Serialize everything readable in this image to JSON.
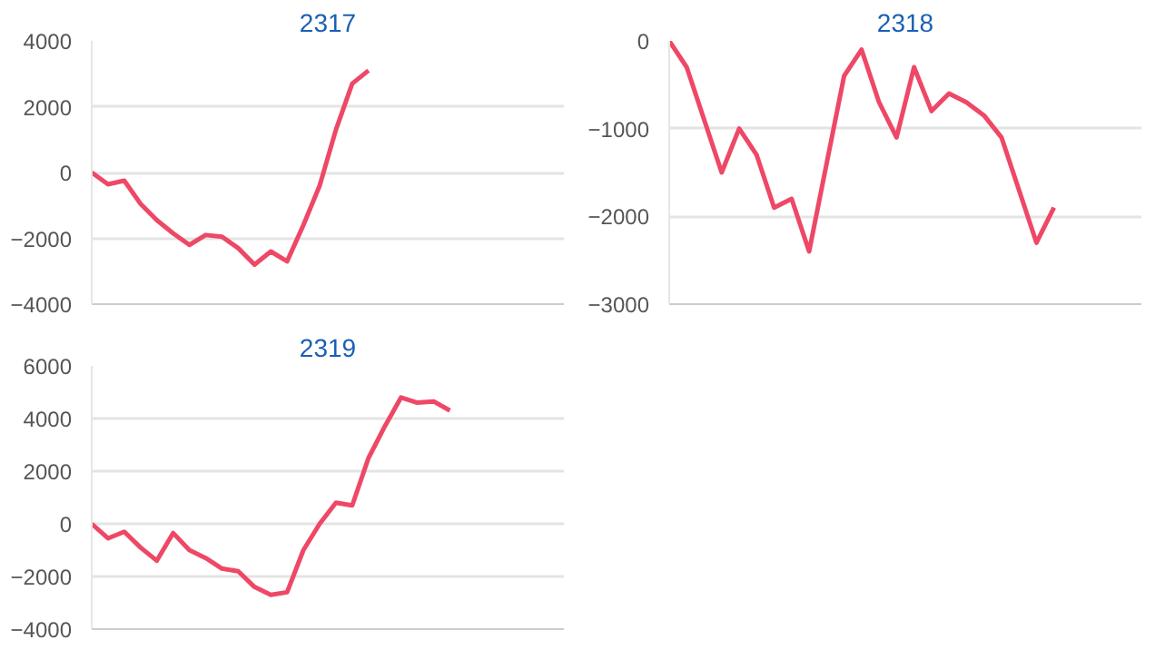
{
  "chart_data": [
    {
      "type": "line",
      "title": "2317",
      "categories": [
        null,
        null,
        null,
        null,
        null,
        null,
        null,
        null,
        null,
        null,
        null,
        null,
        null,
        null,
        null,
        null,
        null,
        null,
        null,
        null,
        null,
        null,
        null,
        null,
        null,
        null,
        null,
        null,
        null,
        null
      ],
      "series": [
        {
          "color": "#ee4866",
          "values": [
            0,
            -360,
            -250,
            -950,
            -1450,
            -1850,
            -2200,
            -1900,
            -1950,
            -2300,
            -2800,
            -2400,
            -2700,
            -1600,
            -400,
            1300,
            2700,
            3100,
            null,
            null,
            null,
            null,
            null,
            null,
            null,
            null,
            null,
            null,
            null,
            null
          ]
        }
      ],
      "ylim": [
        -4000,
        4000
      ],
      "yticks": [
        -4000,
        -2000,
        0,
        2000,
        4000
      ],
      "grid": "y",
      "tick_labels": "y",
      "marker": "none",
      "line_style": "solid"
    },
    {
      "type": "line",
      "title": "2318",
      "categories": [
        null,
        null,
        null,
        null,
        null,
        null,
        null,
        null,
        null,
        null,
        null,
        null,
        null,
        null,
        null,
        null,
        null,
        null,
        null,
        null,
        null,
        null,
        null,
        null,
        null,
        null,
        null,
        null
      ],
      "series": [
        {
          "color": "#ee4866",
          "values": [
            0,
            -300,
            -900,
            -1500,
            -1000,
            -1300,
            -1900,
            -1800,
            -2400,
            -1400,
            -400,
            -100,
            -700,
            -1100,
            -300,
            -800,
            -600,
            -700,
            -850,
            -1100,
            -1700,
            -2300,
            -1900,
            null,
            null,
            null,
            null,
            null
          ]
        }
      ],
      "ylim": [
        -3000,
        0
      ],
      "yticks": [
        -3000,
        -2000,
        -1000,
        0
      ],
      "grid": "y",
      "tick_labels": "y",
      "marker": "none",
      "line_style": "solid"
    },
    {
      "type": "line",
      "title": "2319",
      "categories": [
        null,
        null,
        null,
        null,
        null,
        null,
        null,
        null,
        null,
        null,
        null,
        null,
        null,
        null,
        null,
        null,
        null,
        null,
        null,
        null,
        null,
        null,
        null,
        null,
        null,
        null,
        null,
        null,
        null,
        null
      ],
      "series": [
        {
          "color": "#ee4866",
          "values": [
            0,
            -550,
            -300,
            -900,
            -1400,
            -350,
            -1000,
            -1300,
            -1700,
            -1800,
            -2400,
            -2700,
            -2600,
            -1000,
            0,
            800,
            700,
            2500,
            3700,
            4800,
            4600,
            4650,
            4300,
            null,
            null,
            null,
            null,
            null,
            null,
            null
          ]
        }
      ],
      "ylim": [
        -4000,
        6000
      ],
      "yticks": [
        -4000,
        -2000,
        0,
        2000,
        4000,
        6000
      ],
      "grid": "y",
      "tick_labels": "y",
      "marker": "none",
      "line_style": "solid"
    }
  ]
}
